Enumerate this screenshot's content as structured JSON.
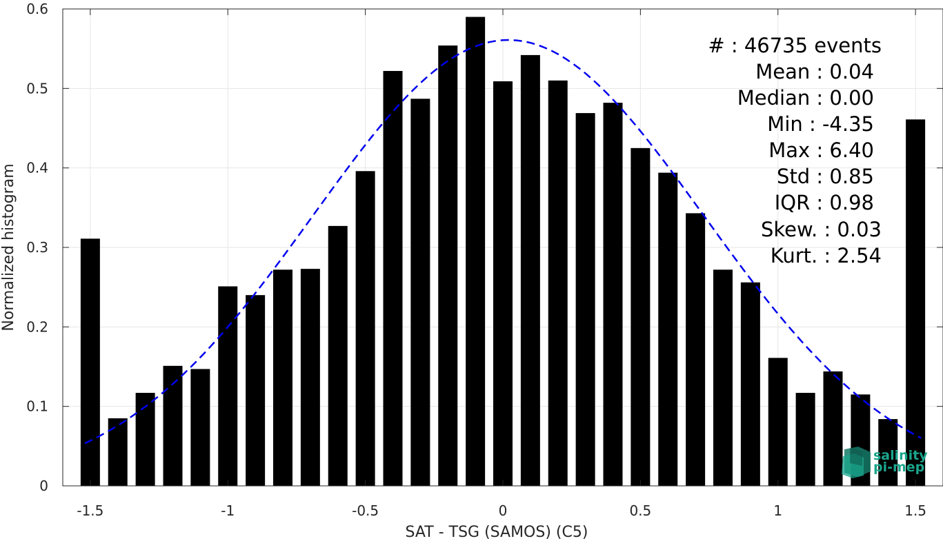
{
  "chart_data": {
    "type": "bar",
    "xlabel": "SAT - TSG (SAMOS) (C5)",
    "ylabel": "Normalized histogram",
    "xlim": [
      -1.6,
      1.6
    ],
    "ylim": [
      0,
      0.6
    ],
    "x_ticks": [
      -1.5,
      -1,
      -0.5,
      0,
      0.5,
      1,
      1.5
    ],
    "x_tick_labels": [
      "-1.5",
      "-1",
      "-0.5",
      "0",
      "0.5",
      "1",
      "1.5"
    ],
    "y_ticks": [
      0,
      0.1,
      0.2,
      0.3,
      0.4,
      0.5,
      0.6
    ],
    "y_tick_labels": [
      "0",
      "0.1",
      "0.2",
      "0.3",
      "0.4",
      "0.5",
      "0.6"
    ],
    "grid": true,
    "bar_color": "#000000",
    "bins": [
      -1.5,
      -1.4,
      -1.3,
      -1.2,
      -1.1,
      -1.0,
      -0.9,
      -0.8,
      -0.7,
      -0.6,
      -0.5,
      -0.4,
      -0.3,
      -0.2,
      -0.1,
      0.0,
      0.1,
      0.2,
      0.3,
      0.4,
      0.5,
      0.6,
      0.7,
      0.8,
      0.9,
      1.0,
      1.1,
      1.2,
      1.3,
      1.4,
      1.5
    ],
    "values": [
      0.311,
      0.085,
      0.117,
      0.151,
      0.147,
      0.251,
      0.24,
      0.272,
      0.273,
      0.327,
      0.396,
      0.522,
      0.487,
      0.554,
      0.59,
      0.509,
      0.542,
      0.51,
      0.469,
      0.482,
      0.425,
      0.394,
      0.343,
      0.272,
      0.256,
      0.161,
      0.117,
      0.144,
      0.115,
      0.084,
      0.461
    ],
    "fit_curve": {
      "style": "dashed",
      "color": "#0000ee",
      "mean": 0.02,
      "peak": 0.561,
      "sigma": 0.71,
      "x_range": [
        -1.52,
        1.52
      ]
    },
    "stats_lines": [
      "#  : 46735 events",
      "Mean : 0.04",
      "Median : 0.00",
      "Min : -4.35",
      "Max : 6.40",
      "Std : 0.85",
      "IQR : 0.98",
      "Skew. : 0.03",
      "Kurt. : 2.54"
    ]
  },
  "logo": {
    "line1": "salinity",
    "line2": "pi-mep",
    "color": "#1aa58c"
  }
}
